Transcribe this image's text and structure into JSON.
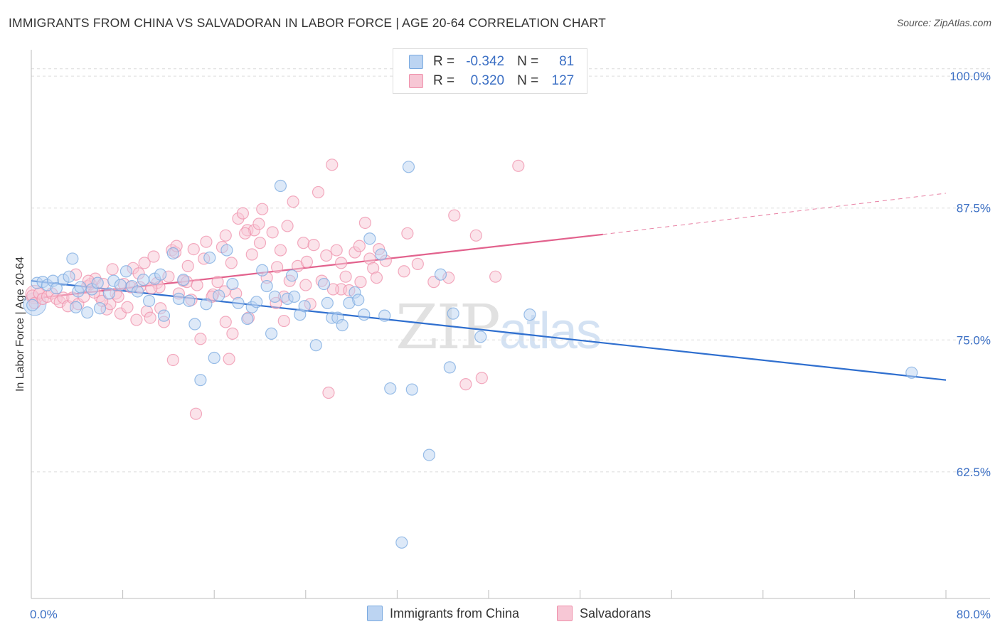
{
  "chart_data": {
    "type": "scatter",
    "title": "IMMIGRANTS FROM CHINA VS SALVADORAN IN LABOR FORCE | AGE 20-64 CORRELATION CHART",
    "source": "Source: ZipAtlas.com",
    "ylabel": "In Labor Force | Age 20-64",
    "xlabel": "",
    "xlim": [
      0,
      80
    ],
    "ylim": [
      50.5,
      102.5
    ],
    "x_tick_labels": [
      "0.0%",
      "80.0%"
    ],
    "y_ticks": [
      62.5,
      75.0,
      87.5,
      100.0
    ],
    "y_tick_labels": [
      "62.5%",
      "75.0%",
      "87.5%",
      "100.0%"
    ],
    "grid": "horizontal dashed",
    "watermark": "ZIPatlas",
    "legend": {
      "position": "top-center",
      "rows": [
        {
          "r_label": "R =",
          "r_value": "-0.342",
          "n_label": "N =",
          "n_value": "81"
        },
        {
          "r_label": "R =",
          "r_value": "0.320",
          "n_label": "N =",
          "n_value": "127"
        }
      ]
    },
    "colors": {
      "blue": "#7aaae0",
      "blue_fill": "#bcd4f2",
      "blue_line": "#2f6fcf",
      "pink": "#ef90ab",
      "pink_fill": "#f7c7d5",
      "pink_line": "#e2628d",
      "axis_text": "#3b6fc4"
    },
    "series": [
      {
        "name": "Immigrants from China",
        "trend": {
          "x": [
            0,
            80
          ],
          "y": [
            80.6,
            71.2
          ]
        },
        "points": [
          [
            0.1,
            78.3
          ],
          [
            0.5,
            80.4
          ],
          [
            1.0,
            80.5
          ],
          [
            1.4,
            80.2
          ],
          [
            1.9,
            80.6
          ],
          [
            2.2,
            79.9
          ],
          [
            2.8,
            80.7
          ],
          [
            3.3,
            81.0
          ],
          [
            3.6,
            82.7
          ],
          [
            3.9,
            78.1
          ],
          [
            4.1,
            79.6
          ],
          [
            4.3,
            80.0
          ],
          [
            4.9,
            77.6
          ],
          [
            5.3,
            79.8
          ],
          [
            5.8,
            80.4
          ],
          [
            6.0,
            78.0
          ],
          [
            6.8,
            79.4
          ],
          [
            7.2,
            80.6
          ],
          [
            7.8,
            80.2
          ],
          [
            8.3,
            81.5
          ],
          [
            8.8,
            80.1
          ],
          [
            9.3,
            79.6
          ],
          [
            9.8,
            80.7
          ],
          [
            10.3,
            78.7
          ],
          [
            10.8,
            80.8
          ],
          [
            11.3,
            81.2
          ],
          [
            11.6,
            77.3
          ],
          [
            12.4,
            83.2
          ],
          [
            12.9,
            78.9
          ],
          [
            13.3,
            80.7
          ],
          [
            13.8,
            78.7
          ],
          [
            14.3,
            76.5
          ],
          [
            14.8,
            71.2
          ],
          [
            15.3,
            78.4
          ],
          [
            15.6,
            82.8
          ],
          [
            16.0,
            73.3
          ],
          [
            16.4,
            79.2
          ],
          [
            17.1,
            83.5
          ],
          [
            17.6,
            80.3
          ],
          [
            18.1,
            78.5
          ],
          [
            18.9,
            77.0
          ],
          [
            19.3,
            78.1
          ],
          [
            19.7,
            78.6
          ],
          [
            20.2,
            81.6
          ],
          [
            20.6,
            80.1
          ],
          [
            21.0,
            75.6
          ],
          [
            21.3,
            79.1
          ],
          [
            21.8,
            89.6
          ],
          [
            22.4,
            78.9
          ],
          [
            23.0,
            79.1
          ],
          [
            23.5,
            77.4
          ],
          [
            23.9,
            78.2
          ],
          [
            22.8,
            81.1
          ],
          [
            24.9,
            74.5
          ],
          [
            25.6,
            80.3
          ],
          [
            25.9,
            78.5
          ],
          [
            26.3,
            77.1
          ],
          [
            26.8,
            77.1
          ],
          [
            27.2,
            76.4
          ],
          [
            27.8,
            78.5
          ],
          [
            28.3,
            79.5
          ],
          [
            28.6,
            78.8
          ],
          [
            29.1,
            77.4
          ],
          [
            29.6,
            84.6
          ],
          [
            30.6,
            83.1
          ],
          [
            30.9,
            77.3
          ],
          [
            31.4,
            70.4
          ],
          [
            32.4,
            55.8
          ],
          [
            33.0,
            91.4
          ],
          [
            33.3,
            70.3
          ],
          [
            34.8,
            64.1
          ],
          [
            35.8,
            81.2
          ],
          [
            36.6,
            72.4
          ],
          [
            36.9,
            77.5
          ],
          [
            39.3,
            75.3
          ],
          [
            43.6,
            77.4
          ],
          [
            77.0,
            71.9
          ]
        ]
      },
      {
        "name": "Salvadorans",
        "trend": {
          "x": [
            0,
            50
          ],
          "y": [
            78.9,
            85.0
          ]
        },
        "trend_dashed": {
          "x": [
            50,
            80
          ],
          "y": [
            85.0,
            88.9
          ]
        },
        "points": [
          [
            0.1,
            79.2
          ],
          [
            0.3,
            78.5
          ],
          [
            0.7,
            79.4
          ],
          [
            1.0,
            78.9
          ],
          [
            1.4,
            79.1
          ],
          [
            1.8,
            79.4
          ],
          [
            2.2,
            78.9
          ],
          [
            2.5,
            78.6
          ],
          [
            2.8,
            79.0
          ],
          [
            3.2,
            78.2
          ],
          [
            3.6,
            79.0
          ],
          [
            3.9,
            81.2
          ],
          [
            4.1,
            78.4
          ],
          [
            4.6,
            79.1
          ],
          [
            4.9,
            80.1
          ],
          [
            5.2,
            80.3
          ],
          [
            5.6,
            80.8
          ],
          [
            6.0,
            79.1
          ],
          [
            6.3,
            80.3
          ],
          [
            6.6,
            77.9
          ],
          [
            6.9,
            78.4
          ],
          [
            7.1,
            81.7
          ],
          [
            7.4,
            79.4
          ],
          [
            7.8,
            77.5
          ],
          [
            8.1,
            80.3
          ],
          [
            8.4,
            78.1
          ],
          [
            8.7,
            80.0
          ],
          [
            8.9,
            81.8
          ],
          [
            9.2,
            76.9
          ],
          [
            9.5,
            80.0
          ],
          [
            9.9,
            82.3
          ],
          [
            10.1,
            77.7
          ],
          [
            10.4,
            77.1
          ],
          [
            10.7,
            82.9
          ],
          [
            11.0,
            80.4
          ],
          [
            11.3,
            78.0
          ],
          [
            11.6,
            76.7
          ],
          [
            12.0,
            81.0
          ],
          [
            12.3,
            83.5
          ],
          [
            12.6,
            83.3
          ],
          [
            12.9,
            79.4
          ],
          [
            13.3,
            80.6
          ],
          [
            13.6,
            80.5
          ],
          [
            14.0,
            78.8
          ],
          [
            14.2,
            83.6
          ],
          [
            14.5,
            80.2
          ],
          [
            14.8,
            75.1
          ],
          [
            15.1,
            82.7
          ],
          [
            15.3,
            84.3
          ],
          [
            15.9,
            79.3
          ],
          [
            16.3,
            80.5
          ],
          [
            16.7,
            83.8
          ],
          [
            17.0,
            84.9
          ],
          [
            17.3,
            73.2
          ],
          [
            17.6,
            75.6
          ],
          [
            17.9,
            79.4
          ],
          [
            18.1,
            86.5
          ],
          [
            18.5,
            87.0
          ],
          [
            18.9,
            85.4
          ],
          [
            19.3,
            83.1
          ],
          [
            19.5,
            85.4
          ],
          [
            19.9,
            86.0
          ],
          [
            20.2,
            87.4
          ],
          [
            20.6,
            80.9
          ],
          [
            21.1,
            85.2
          ],
          [
            21.5,
            81.9
          ],
          [
            21.8,
            83.5
          ],
          [
            22.1,
            79.1
          ],
          [
            22.4,
            85.8
          ],
          [
            22.9,
            88.1
          ],
          [
            23.3,
            82.0
          ],
          [
            23.8,
            84.2
          ],
          [
            24.1,
            82.4
          ],
          [
            24.4,
            78.4
          ],
          [
            24.7,
            84.0
          ],
          [
            25.1,
            89.0
          ],
          [
            25.4,
            80.6
          ],
          [
            26.0,
            70.0
          ],
          [
            26.3,
            91.6
          ],
          [
            26.7,
            83.5
          ],
          [
            27.1,
            79.8
          ],
          [
            27.5,
            81.0
          ],
          [
            27.8,
            79.7
          ],
          [
            28.3,
            83.3
          ],
          [
            28.8,
            80.5
          ],
          [
            29.2,
            86.1
          ],
          [
            29.6,
            82.7
          ],
          [
            29.9,
            81.8
          ],
          [
            30.4,
            83.6
          ],
          [
            31.0,
            82.5
          ],
          [
            32.6,
            81.5
          ],
          [
            32.9,
            85.1
          ],
          [
            33.8,
            82.2
          ],
          [
            35.2,
            80.5
          ],
          [
            36.5,
            80.9
          ],
          [
            37.0,
            86.8
          ],
          [
            38.0,
            70.8
          ],
          [
            38.9,
            84.9
          ],
          [
            39.4,
            71.4
          ],
          [
            40.6,
            81.0
          ],
          [
            42.6,
            91.5
          ],
          [
            5.0,
            80.6
          ],
          [
            6.2,
            78.7
          ],
          [
            9.4,
            81.3
          ],
          [
            11.2,
            80.0
          ],
          [
            12.7,
            83.9
          ],
          [
            13.7,
            82.0
          ],
          [
            15.8,
            79.1
          ],
          [
            16.9,
            79.6
          ],
          [
            17.5,
            82.3
          ],
          [
            18.7,
            85.1
          ],
          [
            20.0,
            84.2
          ],
          [
            21.4,
            78.5
          ],
          [
            22.6,
            80.6
          ],
          [
            24.0,
            80.2
          ],
          [
            25.8,
            83.0
          ],
          [
            27.1,
            82.3
          ],
          [
            28.7,
            83.9
          ],
          [
            30.2,
            80.9
          ],
          [
            5.5,
            79.5
          ],
          [
            7.6,
            79.1
          ],
          [
            10.5,
            79.9
          ],
          [
            12.4,
            73.1
          ],
          [
            14.4,
            68.0
          ],
          [
            17.0,
            76.7
          ],
          [
            19.0,
            77.1
          ],
          [
            22.1,
            76.8
          ],
          [
            26.4,
            79.8
          ]
        ]
      }
    ]
  },
  "legend_bottom": {
    "series1": "Immigrants from China",
    "series2": "Salvadorans"
  }
}
